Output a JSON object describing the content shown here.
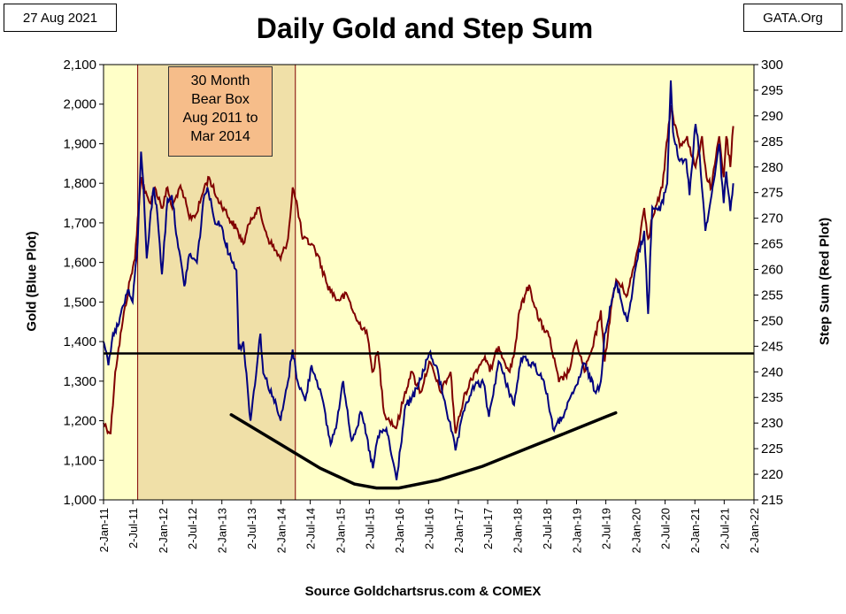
{
  "header": {
    "date_label": "27 Aug 2021",
    "source_badge": "GATA.Org"
  },
  "footer": {
    "source": "Source Goldchartsrus.com & COMEX"
  },
  "annotation": {
    "lines": [
      "30 Month",
      "Bear Box",
      "Aug 2011 to",
      "Mar 2014"
    ]
  },
  "colors": {
    "plot_bg": "#ffffc8",
    "gold_series": "#000080",
    "step_sum_series": "#800000",
    "bear_box_fill": "#f0e0a8",
    "bear_box_border": "#800000",
    "annotation_fill": "#f6bd8a",
    "reference_line": "#000000",
    "trend_curve": "#000000"
  },
  "chart_data": {
    "type": "line",
    "title": "Daily Gold and Step Sum",
    "xlabel": "",
    "ylabel_left": "Gold  (Blue Plot)",
    "ylabel_right": "Step Sum  (Red Plot)",
    "x_ticks": [
      "2-Jan-11",
      "2-Jul-11",
      "2-Jan-12",
      "2-Jul-12",
      "2-Jan-13",
      "2-Jul-13",
      "2-Jan-14",
      "2-Jul-14",
      "2-Jan-15",
      "2-Jul-15",
      "2-Jan-16",
      "2-Jul-16",
      "2-Jan-17",
      "2-Jul-17",
      "2-Jan-18",
      "2-Jul-18",
      "2-Jan-19",
      "2-Jul-19",
      "2-Jan-20",
      "2-Jul-20",
      "2-Jan-21",
      "2-Jul-21",
      "2-Jan-22"
    ],
    "xlim": [
      "2011-01-02",
      "2022-01-02"
    ],
    "ylim_left": [
      1000,
      2100
    ],
    "y_ticks_left": [
      "1,000",
      "1,100",
      "1,200",
      "1,300",
      "1,400",
      "1,500",
      "1,600",
      "1,700",
      "1,800",
      "1,900",
      "2,000",
      "2,100"
    ],
    "ylim_right": [
      215,
      300
    ],
    "y_ticks_right": [
      "215",
      "220",
      "225",
      "230",
      "235",
      "240",
      "245",
      "250",
      "255",
      "260",
      "265",
      "270",
      "275",
      "280",
      "285",
      "290",
      "295",
      "300"
    ],
    "grid": false,
    "bear_box": {
      "start": "2011-08-01",
      "end": "2014-04-01"
    },
    "reference_line_gold": 1370,
    "series": [
      {
        "name": "Gold",
        "axis": "left",
        "points": [
          [
            "2011-01-02",
            1400
          ],
          [
            "2011-02-01",
            1340
          ],
          [
            "2011-03-01",
            1420
          ],
          [
            "2011-04-01",
            1440
          ],
          [
            "2011-05-01",
            1490
          ],
          [
            "2011-06-01",
            1530
          ],
          [
            "2011-07-01",
            1500
          ],
          [
            "2011-08-01",
            1650
          ],
          [
            "2011-08-22",
            1880
          ],
          [
            "2011-09-05",
            1800
          ],
          [
            "2011-09-26",
            1610
          ],
          [
            "2011-10-15",
            1700
          ],
          [
            "2011-11-08",
            1790
          ],
          [
            "2011-12-01",
            1720
          ],
          [
            "2011-12-29",
            1570
          ],
          [
            "2012-02-01",
            1760
          ],
          [
            "2012-02-28",
            1770
          ],
          [
            "2012-04-01",
            1660
          ],
          [
            "2012-05-15",
            1540
          ],
          [
            "2012-06-15",
            1620
          ],
          [
            "2012-08-01",
            1600
          ],
          [
            "2012-09-15",
            1770
          ],
          [
            "2012-10-05",
            1790
          ],
          [
            "2012-11-15",
            1710
          ],
          [
            "2013-01-02",
            1690
          ],
          [
            "2013-02-15",
            1620
          ],
          [
            "2013-03-15",
            1600
          ],
          [
            "2013-04-02",
            1580
          ],
          [
            "2013-04-16",
            1380
          ],
          [
            "2013-05-15",
            1400
          ],
          [
            "2013-06-28",
            1200
          ],
          [
            "2013-08-28",
            1420
          ],
          [
            "2013-09-15",
            1320
          ],
          [
            "2013-11-15",
            1260
          ],
          [
            "2013-12-31",
            1200
          ],
          [
            "2014-02-15",
            1300
          ],
          [
            "2014-03-15",
            1380
          ],
          [
            "2014-04-15",
            1300
          ],
          [
            "2014-06-01",
            1250
          ],
          [
            "2014-07-10",
            1340
          ],
          [
            "2014-09-01",
            1280
          ],
          [
            "2014-11-05",
            1140
          ],
          [
            "2014-12-15",
            1200
          ],
          [
            "2015-01-22",
            1300
          ],
          [
            "2015-03-15",
            1150
          ],
          [
            "2015-05-15",
            1220
          ],
          [
            "2015-07-24",
            1080
          ],
          [
            "2015-08-24",
            1160
          ],
          [
            "2015-10-15",
            1180
          ],
          [
            "2015-12-17",
            1050
          ],
          [
            "2016-02-11",
            1240
          ],
          [
            "2016-03-15",
            1250
          ],
          [
            "2016-05-01",
            1290
          ],
          [
            "2016-07-06",
            1370
          ],
          [
            "2016-08-15",
            1340
          ],
          [
            "2016-10-10",
            1250
          ],
          [
            "2016-12-15",
            1125
          ],
          [
            "2017-02-15",
            1240
          ],
          [
            "2017-04-15",
            1290
          ],
          [
            "2017-06-06",
            1295
          ],
          [
            "2017-07-10",
            1210
          ],
          [
            "2017-09-08",
            1350
          ],
          [
            "2017-12-12",
            1240
          ],
          [
            "2018-01-25",
            1360
          ],
          [
            "2018-04-15",
            1340
          ],
          [
            "2018-06-15",
            1300
          ],
          [
            "2018-08-16",
            1175
          ],
          [
            "2018-11-01",
            1230
          ],
          [
            "2019-01-02",
            1290
          ],
          [
            "2019-02-20",
            1345
          ],
          [
            "2019-05-01",
            1270
          ],
          [
            "2019-06-01",
            1300
          ],
          [
            "2019-06-25",
            1420
          ],
          [
            "2019-09-04",
            1550
          ],
          [
            "2019-11-12",
            1450
          ],
          [
            "2020-01-08",
            1600
          ],
          [
            "2020-02-24",
            1680
          ],
          [
            "2020-03-19",
            1470
          ],
          [
            "2020-04-14",
            1740
          ],
          [
            "2020-06-01",
            1730
          ],
          [
            "2020-07-15",
            1800
          ],
          [
            "2020-08-06",
            2060
          ],
          [
            "2020-08-20",
            1930
          ],
          [
            "2020-09-24",
            1860
          ],
          [
            "2020-11-09",
            1860
          ],
          [
            "2020-11-30",
            1770
          ],
          [
            "2021-01-06",
            1950
          ],
          [
            "2021-02-01",
            1870
          ],
          [
            "2021-03-08",
            1680
          ],
          [
            "2021-04-15",
            1770
          ],
          [
            "2021-06-01",
            1900
          ],
          [
            "2021-06-29",
            1750
          ],
          [
            "2021-07-15",
            1830
          ],
          [
            "2021-08-09",
            1730
          ],
          [
            "2021-08-27",
            1800
          ]
        ]
      },
      {
        "name": "Step Sum",
        "axis": "right",
        "points": [
          [
            "2011-01-02",
            230
          ],
          [
            "2011-02-15",
            228
          ],
          [
            "2011-03-15",
            240
          ],
          [
            "2011-05-01",
            250
          ],
          [
            "2011-06-15",
            258
          ],
          [
            "2011-07-15",
            262
          ],
          [
            "2011-08-01",
            270
          ],
          [
            "2011-08-22",
            278
          ],
          [
            "2011-09-15",
            275
          ],
          [
            "2011-10-15",
            273
          ],
          [
            "2011-11-15",
            276
          ],
          [
            "2012-01-01",
            272
          ],
          [
            "2012-02-01",
            276
          ],
          [
            "2012-03-01",
            272
          ],
          [
            "2012-04-15",
            276
          ],
          [
            "2012-05-15",
            274
          ],
          [
            "2012-06-15",
            270
          ],
          [
            "2012-08-01",
            271
          ],
          [
            "2012-09-15",
            276
          ],
          [
            "2012-10-15",
            278
          ],
          [
            "2012-12-01",
            274
          ],
          [
            "2013-01-15",
            272
          ],
          [
            "2013-02-15",
            270
          ],
          [
            "2013-04-01",
            268
          ],
          [
            "2013-05-15",
            265
          ],
          [
            "2013-07-01",
            270
          ],
          [
            "2013-08-15",
            272
          ],
          [
            "2013-10-15",
            266
          ],
          [
            "2013-12-31",
            262
          ],
          [
            "2014-02-15",
            266
          ],
          [
            "2014-03-15",
            276
          ],
          [
            "2014-04-15",
            272
          ],
          [
            "2014-05-15",
            266
          ],
          [
            "2014-07-10",
            265
          ],
          [
            "2014-08-15",
            263
          ],
          [
            "2014-10-15",
            257
          ],
          [
            "2014-12-15",
            254
          ],
          [
            "2015-02-15",
            255
          ],
          [
            "2015-04-15",
            250
          ],
          [
            "2015-06-15",
            248
          ],
          [
            "2015-07-20",
            240
          ],
          [
            "2015-08-24",
            244
          ],
          [
            "2015-10-01",
            232
          ],
          [
            "2015-12-15",
            229
          ],
          [
            "2016-02-01",
            235
          ],
          [
            "2016-03-15",
            240
          ],
          [
            "2016-05-15",
            236
          ],
          [
            "2016-07-06",
            242
          ],
          [
            "2016-09-15",
            236
          ],
          [
            "2016-11-15",
            240
          ],
          [
            "2016-12-15",
            228
          ],
          [
            "2017-02-15",
            236
          ],
          [
            "2017-04-15",
            240
          ],
          [
            "2017-06-15",
            243
          ],
          [
            "2017-07-15",
            240
          ],
          [
            "2017-09-08",
            245
          ],
          [
            "2017-11-15",
            240
          ],
          [
            "2017-12-15",
            244
          ],
          [
            "2018-01-15",
            252
          ],
          [
            "2018-03-15",
            257
          ],
          [
            "2018-05-15",
            250
          ],
          [
            "2018-07-15",
            247
          ],
          [
            "2018-09-15",
            238
          ],
          [
            "2018-11-15",
            240
          ],
          [
            "2019-01-02",
            246
          ],
          [
            "2019-02-20",
            240
          ],
          [
            "2019-04-15",
            245
          ],
          [
            "2019-06-01",
            252
          ],
          [
            "2019-06-25",
            242
          ],
          [
            "2019-08-01",
            252
          ],
          [
            "2019-09-04",
            258
          ],
          [
            "2019-11-12",
            255
          ],
          [
            "2020-01-15",
            264
          ],
          [
            "2020-02-24",
            272
          ],
          [
            "2020-03-19",
            266
          ],
          [
            "2020-04-14",
            270
          ],
          [
            "2020-06-15",
            276
          ],
          [
            "2020-08-06",
            292
          ],
          [
            "2020-08-20",
            290
          ],
          [
            "2020-10-01",
            284
          ],
          [
            "2020-11-15",
            286
          ],
          [
            "2020-12-15",
            282
          ],
          [
            "2021-01-06",
            280
          ],
          [
            "2021-02-15",
            286
          ],
          [
            "2021-03-15",
            278
          ],
          [
            "2021-04-15",
            276
          ],
          [
            "2021-06-01",
            286
          ],
          [
            "2021-06-29",
            278
          ],
          [
            "2021-07-15",
            286
          ],
          [
            "2021-08-09",
            280
          ],
          [
            "2021-08-27",
            288
          ]
        ]
      },
      {
        "name": "Trend Curve",
        "axis": "left",
        "points": [
          [
            "2013-03-01",
            1215
          ],
          [
            "2014-01-01",
            1140
          ],
          [
            "2014-09-01",
            1080
          ],
          [
            "2015-04-01",
            1040
          ],
          [
            "2015-08-15",
            1030
          ],
          [
            "2016-01-01",
            1030
          ],
          [
            "2016-09-01",
            1050
          ],
          [
            "2017-06-01",
            1085
          ],
          [
            "2018-03-01",
            1130
          ],
          [
            "2018-11-01",
            1170
          ],
          [
            "2019-07-01",
            1210
          ],
          [
            "2019-09-01",
            1220
          ]
        ]
      }
    ]
  }
}
